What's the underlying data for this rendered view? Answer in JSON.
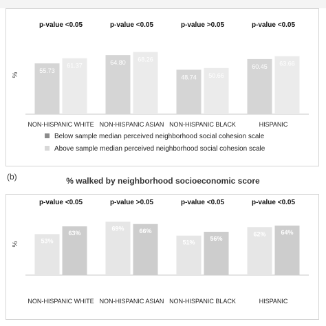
{
  "chart_data": [
    {
      "type": "bar",
      "title": "",
      "ylabel": "%",
      "ylim": [
        0,
        80
      ],
      "categories": [
        "NON-HISPANIC WHITE",
        "NON-HISPANIC ASIAN",
        "NON-HISPANIC BLACK",
        "HISPANIC"
      ],
      "group_annotations": [
        "p-value <0.05",
        "p-value <0.05",
        "p-value >0.05",
        "p-value <0.05"
      ],
      "series": [
        {
          "name": "Below sample median   perceived neighborhood social cohesion scale",
          "values": [
            55.73,
            64.8,
            48.74,
            60.45
          ],
          "labels": [
            "55.73",
            "64.80",
            "48.74",
            "60.45"
          ],
          "color": "#d5d5d5"
        },
        {
          "name": "Above sample median   perceived neighborhood social cohesion scale",
          "values": [
            61.37,
            68.26,
            50.66,
            63.66
          ],
          "labels": [
            "61.37",
            "68.26",
            "50.66",
            "63.66"
          ],
          "color": "#ebebeb"
        }
      ],
      "legend_position": "bottom",
      "grid": false
    },
    {
      "type": "bar",
      "panel_label": "(b)",
      "title": "% walked by neighborhood socioeconomic score",
      "ylabel": "%",
      "ylim": [
        0,
        80
      ],
      "categories": [
        "NON-HISPANIC WHITE",
        "NON-HISPANIC ASIAN",
        "NON-HISPANIC BLACK",
        "HISPANIC"
      ],
      "group_annotations": [
        "p-value <0.05",
        "p-value >0.05",
        "p-value <0.05",
        "p-value <0.05"
      ],
      "series": [
        {
          "values": [
            53,
            69,
            51,
            62
          ],
          "labels": [
            "53%",
            "69%",
            "51%",
            "62%"
          ],
          "color": "#e6e6e6"
        },
        {
          "values": [
            63,
            66,
            56,
            64
          ],
          "labels": [
            "63%",
            "66%",
            "56%",
            "64%"
          ],
          "color": "#cdcdcd"
        }
      ],
      "grid": false
    }
  ],
  "legend_swatch_colors": [
    "#8c8c8c",
    "#d8d8d8"
  ]
}
